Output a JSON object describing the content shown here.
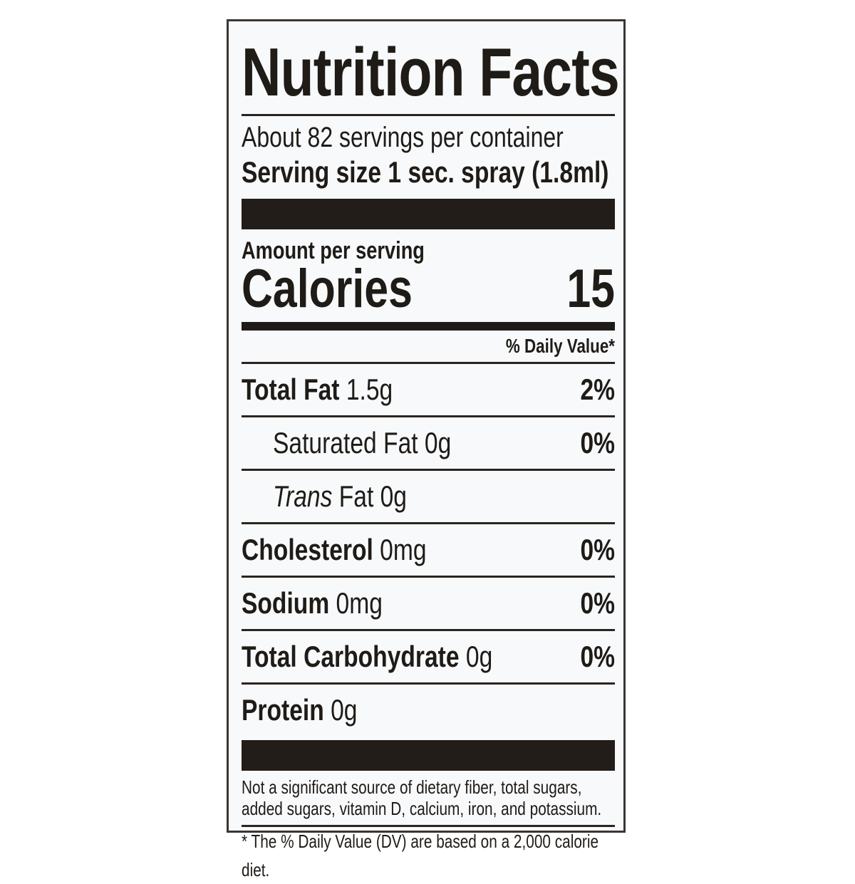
{
  "title": "Nutrition Facts",
  "servings_per_container": "About 82 servings per container",
  "serving_size": "Serving size 1 sec. spray (1.8ml)",
  "amount_per_serving": "Amount per serving",
  "calories_label": "Calories",
  "calories_value": "15",
  "daily_value_header": "% Daily Value*",
  "nutrients": [
    {
      "name": "Total Fat",
      "amount": "1.5g",
      "dv": "2%"
    },
    {
      "name": "Saturated Fat",
      "amount": "0g",
      "dv": "0%"
    },
    {
      "name": "Trans",
      "name_suffix": "Fat",
      "amount": "0g",
      "dv": ""
    },
    {
      "name": "Cholesterol",
      "amount": "0mg",
      "dv": "0%"
    },
    {
      "name": "Sodium",
      "amount": "0mg",
      "dv": "0%"
    },
    {
      "name": "Total Carbohydrate",
      "amount": "0g",
      "dv": "0%"
    },
    {
      "name": "Protein",
      "amount": "0g",
      "dv": ""
    }
  ],
  "footnote_significance": "Not a significant source of dietary fiber, total sugars, added sugars, vitamin D, calcium, iron, and potassium.",
  "footnote_dv": "* The % Daily Value (DV) are based on a 2,000 calorie diet."
}
